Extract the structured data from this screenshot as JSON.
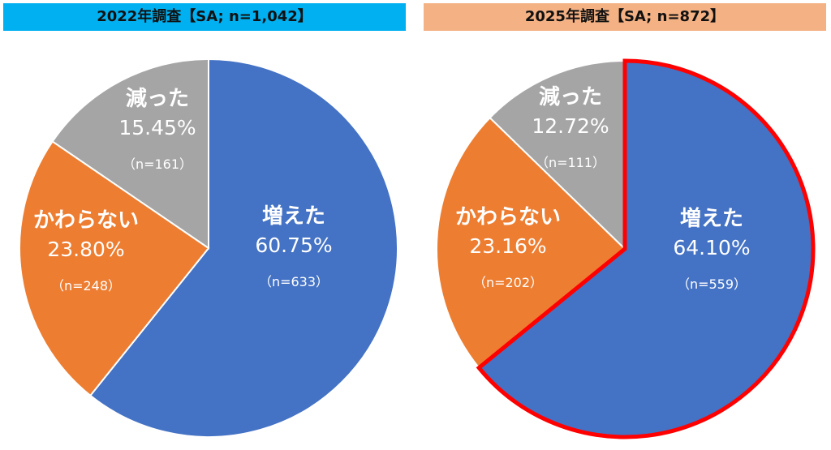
{
  "chart_data": [
    {
      "type": "pie",
      "title": "2022年調査【SA; n=1,042】",
      "title_bg": "#00b0f0",
      "slices": [
        {
          "label": "増えた",
          "value": 60.75,
          "pct_text": "60.75%",
          "n_text": "（n=633）",
          "color": "#4472c4",
          "text_color": "#ffffff"
        },
        {
          "label": "かわらない",
          "value": 23.8,
          "pct_text": "23.80%",
          "n_text": "（n=248）",
          "color": "#ed7d31",
          "text_color": "#ffffff"
        },
        {
          "label": "減った",
          "value": 15.45,
          "pct_text": "15.45%",
          "n_text": "（n=161）",
          "color": "#a5a5a5",
          "text_color": "#ffffff"
        }
      ]
    },
    {
      "type": "pie",
      "title": "2025年調査【SA; n=872】",
      "title_bg": "#f4b183",
      "highlight_color": "#ff0000",
      "slices": [
        {
          "label": "増えた",
          "value": 64.1,
          "pct_text": "64.10%",
          "n_text": "（n=559）",
          "color": "#4472c4",
          "text_color": "#ffffff",
          "highlight": true
        },
        {
          "label": "かわらない",
          "value": 23.16,
          "pct_text": "23.16%",
          "n_text": "（n=202）",
          "color": "#ed7d31",
          "text_color": "#ffffff"
        },
        {
          "label": "減った",
          "value": 12.72,
          "pct_text": "12.72%",
          "n_text": "（n=111）",
          "color": "#a5a5a5",
          "text_color": "#ffffff"
        }
      ]
    }
  ]
}
